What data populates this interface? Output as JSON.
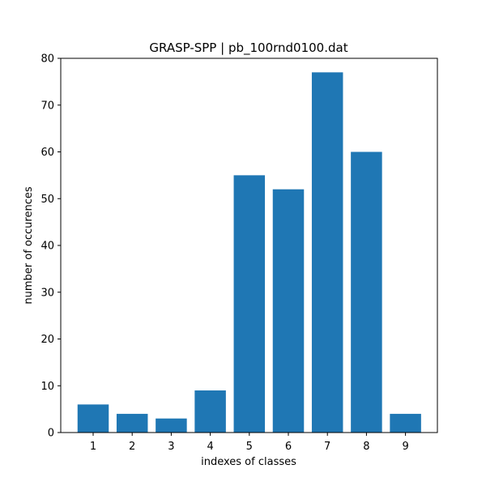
{
  "chart_data": {
    "type": "bar",
    "title": "GRASP-SPP | pb_100rnd0100.dat",
    "xlabel": "indexes of classes",
    "ylabel": "number of occurences",
    "categories": [
      "1",
      "2",
      "3",
      "4",
      "5",
      "6",
      "7",
      "8",
      "9"
    ],
    "values": [
      6,
      4,
      3,
      9,
      55,
      52,
      77,
      60,
      4
    ],
    "ylim": [
      0,
      80
    ],
    "yticks": [
      "0",
      "10",
      "20",
      "30",
      "40",
      "50",
      "60",
      "70",
      "80"
    ],
    "bar_color": "#1f77b4",
    "grid": false
  }
}
